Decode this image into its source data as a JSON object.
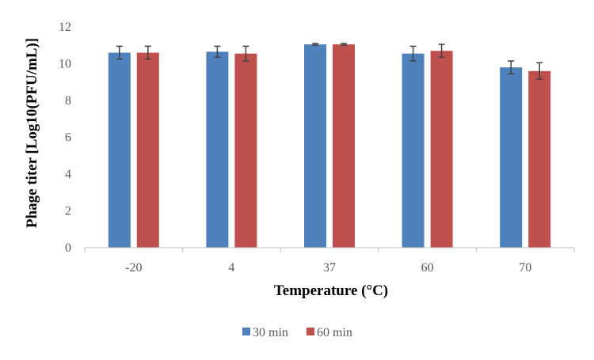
{
  "chart_data": {
    "type": "bar",
    "title": "",
    "xlabel": "Temperature (°C)",
    "ylabel": "Phage titer [Log10(PFU/mL)]",
    "categories": [
      "-20",
      "4",
      "37",
      "60",
      "70"
    ],
    "ylim": [
      0,
      12
    ],
    "yticks": [
      "0",
      "2",
      "4",
      "6",
      "8",
      "10",
      "12"
    ],
    "grid": false,
    "legend_position": "bottom",
    "series": [
      {
        "name": "30 min",
        "color": "#4f81bd",
        "values": [
          10.6,
          10.65,
          11.05,
          10.55,
          9.8
        ],
        "errors": [
          0.35,
          0.3,
          0.05,
          0.4,
          0.35
        ]
      },
      {
        "name": "60 min",
        "color": "#c0504d",
        "values": [
          10.6,
          10.55,
          11.05,
          10.7,
          9.6
        ],
        "errors": [
          0.35,
          0.4,
          0.05,
          0.35,
          0.45
        ]
      }
    ]
  }
}
